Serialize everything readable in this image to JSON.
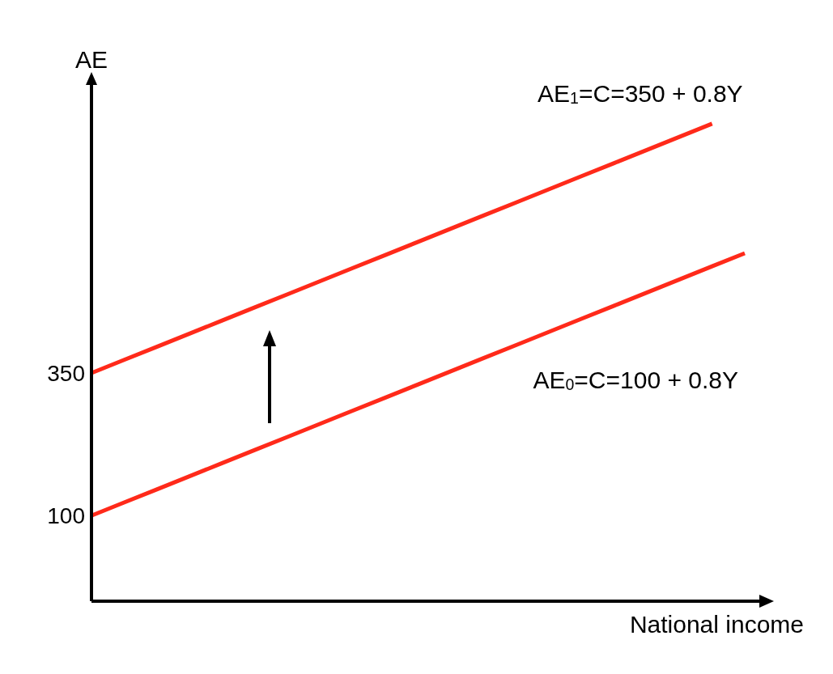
{
  "chart_data": {
    "type": "line",
    "xlabel": "National income",
    "ylabel": "AE",
    "categories": [
      null,
      null,
      null,
      null,
      null,
      null,
      null,
      null,
      null,
      null,
      null,
      null,
      null,
      null,
      null,
      null,
      null,
      null,
      null,
      null,
      null
    ],
    "series": [
      {
        "color": "#ff2a1a",
        "values": [
          350,
          373,
          396,
          419,
          442,
          465,
          488,
          511,
          534,
          557,
          580,
          603,
          626,
          649,
          672,
          695,
          718,
          741,
          764,
          787,
          null
        ]
      },
      {
        "color": "#ff2a1a",
        "values": [
          100,
          123,
          146,
          169,
          192,
          215,
          238,
          261,
          284,
          307,
          330,
          353,
          376,
          399,
          422,
          445,
          468,
          491,
          514,
          537,
          560
        ]
      }
    ],
    "ylim": [
      -50,
      855
    ],
    "yticks": [
      100,
      350
    ],
    "grid": false,
    "line_style": "solid",
    "annotations": [
      "AE$_{1}$=C=350 + 0.8Y",
      "AE$_{0}$=C=100 + 0.8Y"
    ]
  }
}
